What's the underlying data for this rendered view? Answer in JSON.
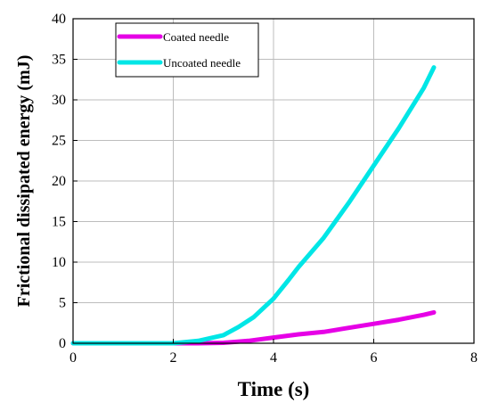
{
  "chart_data": {
    "type": "line",
    "title": "",
    "xlabel": "Time (s)",
    "ylabel": "Frictional dissipated energy (mJ)",
    "xlim": [
      0,
      8
    ],
    "ylim": [
      0,
      40
    ],
    "xticks": [
      0,
      2,
      4,
      6,
      8
    ],
    "yticks": [
      0,
      5,
      10,
      15,
      20,
      25,
      30,
      35,
      40
    ],
    "grid": true,
    "legend_position": "top-left",
    "series": [
      {
        "name": "Coated needle",
        "color": "#e600e6",
        "x": [
          0,
          2.5,
          3.0,
          3.5,
          4.0,
          4.5,
          5.0,
          5.5,
          6.0,
          6.5,
          7.0,
          7.2
        ],
        "y": [
          0,
          0,
          0.05,
          0.3,
          0.7,
          1.1,
          1.4,
          1.9,
          2.4,
          2.9,
          3.5,
          3.8
        ]
      },
      {
        "name": "Uncoated needle",
        "color": "#00e6e6",
        "x": [
          0,
          2.0,
          2.5,
          3.0,
          3.3,
          3.6,
          4.0,
          4.3,
          4.5,
          5.0,
          5.5,
          6.0,
          6.5,
          7.0,
          7.2
        ],
        "y": [
          0,
          0,
          0.3,
          1.0,
          2.0,
          3.2,
          5.5,
          7.8,
          9.4,
          13.0,
          17.3,
          21.9,
          26.5,
          31.5,
          34.0
        ]
      }
    ]
  }
}
